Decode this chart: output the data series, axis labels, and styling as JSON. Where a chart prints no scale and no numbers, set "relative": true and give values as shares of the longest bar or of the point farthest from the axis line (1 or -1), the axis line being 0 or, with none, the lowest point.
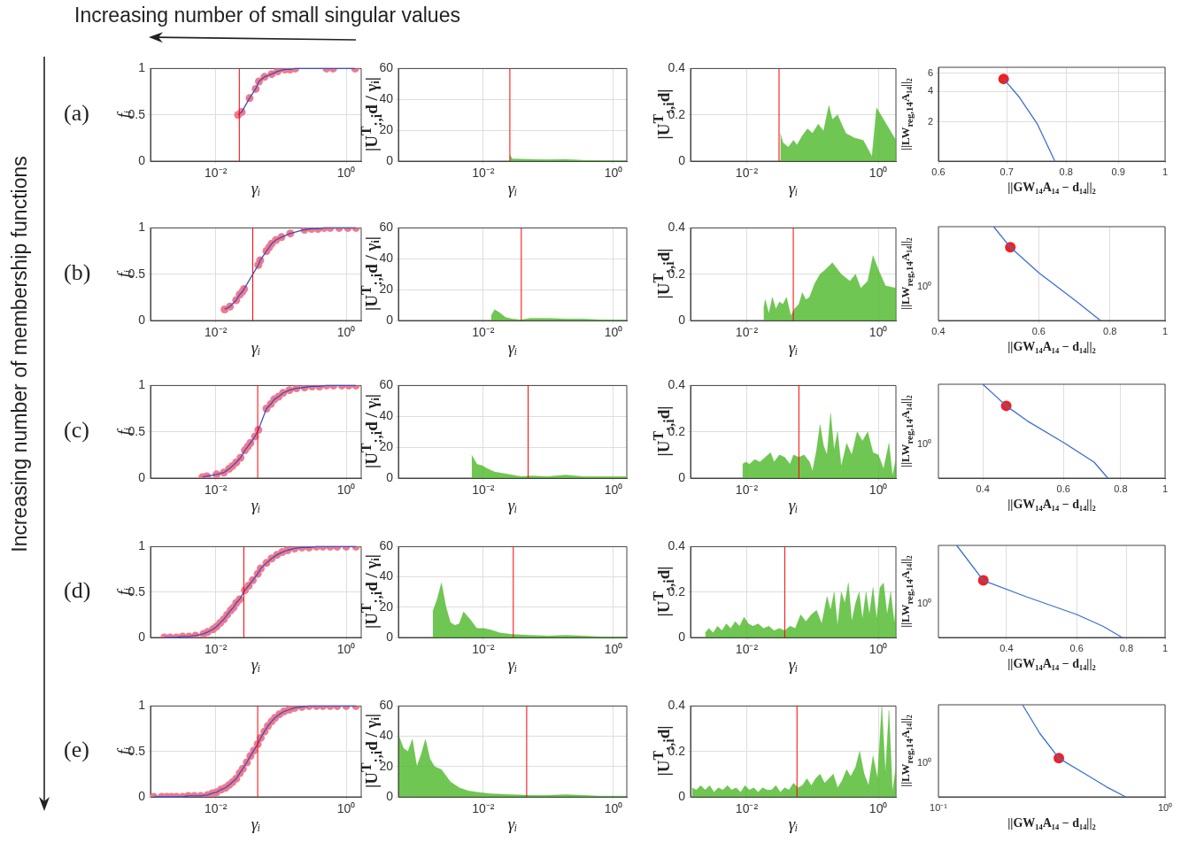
{
  "chart_data": [
    {
      "type": "line",
      "xlabel": "γᵢ",
      "ylabel": "fᵢ",
      "annotations": [
        "Increasing number of small singular values",
        "Increasing number of membership functions",
        "(a)"
      ],
      "log": "x",
      "grid": true,
      "xlim": [
        0.001,
        1.7
      ],
      "ylim": [
        0,
        1
      ],
      "xticks": [
        {
          "value": 0.01,
          "label": "10⁻²"
        },
        {
          "value": 1,
          "label": "10⁰"
        }
      ],
      "yticks": [
        0,
        0.5,
        1
      ],
      "ref_lines": [
        {
          "axis": "x",
          "value": 0.023,
          "color": "#ff0000"
        }
      ],
      "x": [
        0.022,
        0.025,
        0.033,
        0.041,
        0.046,
        0.056,
        0.072,
        0.089,
        0.115,
        0.138,
        0.166,
        0.5,
        0.63,
        1.37
      ],
      "series": [
        {
          "color": "#3b4fc4",
          "values": [
            0.5,
            0.53,
            0.68,
            0.78,
            0.86,
            0.91,
            0.94,
            0.97,
            0.99,
            0.99,
            1,
            1,
            1,
            1
          ]
        },
        {
          "type": "scatter",
          "marker": "circle",
          "color": "#f2798b",
          "values": [
            0.5,
            0.53,
            0.68,
            0.78,
            0.86,
            0.91,
            0.94,
            0.97,
            0.99,
            0.99,
            1,
            1,
            1,
            1
          ]
        }
      ]
    },
    {
      "type": "area",
      "xlabel": "γᵢ",
      "ylabel": "|U$^{T}$$_{:,i}$d / γᵢ|",
      "log": "x",
      "grid": true,
      "xlim": [
        0.0005,
        1.6
      ],
      "ylim": [
        0,
        60
      ],
      "xticks": [
        {
          "value": 0.01,
          "label": "10⁻²"
        },
        {
          "value": 1,
          "label": "10⁰"
        }
      ],
      "yticks": [
        0,
        20,
        40,
        60
      ],
      "ref_lines": [
        {
          "axis": "x",
          "value": 0.0257,
          "color": "#ff0000"
        }
      ],
      "x": [
        0.0257,
        0.0281,
        0.053,
        0.098,
        0.184,
        0.345,
        0.645,
        1.55
      ],
      "series": [
        {
          "color": "#4cb828",
          "values": [
            4,
            1.5,
            1.2,
            1,
            1.2,
            0.6,
            0.4,
            0.3
          ]
        }
      ]
    },
    {
      "type": "area",
      "xlabel": "γᵢ",
      "ylabel": "|U$^{T}$$_{:,i}$d|",
      "log": "x",
      "grid": true,
      "xlim": [
        0.0014,
        1.85
      ],
      "ylim": [
        0,
        0.4
      ],
      "xticks": [
        {
          "value": 0.01,
          "label": "10⁻²"
        },
        {
          "value": 1,
          "label": "10⁰"
        }
      ],
      "yticks": [
        0,
        0.2,
        0.4
      ],
      "ref_lines": [
        {
          "axis": "x",
          "value": 0.031,
          "color": "#ff0000"
        }
      ],
      "x": [
        0.0324,
        0.0355,
        0.0427,
        0.0514,
        0.058,
        0.07,
        0.084,
        0.1,
        0.122,
        0.147,
        0.177,
        0.2,
        0.24,
        0.32,
        0.43,
        0.59,
        0.8,
        0.94,
        1.85
      ],
      "series": [
        {
          "color": "#4cb828",
          "values": [
            0.12,
            0.08,
            0.06,
            0.09,
            0.07,
            0.11,
            0.14,
            0.12,
            0.16,
            0.13,
            0.24,
            0.18,
            0.2,
            0.12,
            0.1,
            0.09,
            0.02,
            0.23,
            0.09
          ]
        }
      ]
    },
    {
      "type": "line",
      "xlabel": "||GW₁₄A₁₄ − d₁₄||₂",
      "ylabel": "||LW$_{reg,14}$A₁₄||₂",
      "log": "xy",
      "grid": true,
      "xlim": [
        0.6,
        1
      ],
      "ylim": [
        0.82,
        6.9
      ],
      "xticks": [
        0.6,
        0.7,
        0.8,
        0.9,
        1
      ],
      "yticks": [
        2,
        4,
        6
      ],
      "series": [
        {
          "color": "#3b6fd4",
          "x": [
            0.695,
            0.72,
            0.75,
            0.78
          ],
          "values": [
            5.3,
            3.5,
            1.9,
            0.82
          ]
        },
        {
          "type": "scatter",
          "color": "#ee2222",
          "x": [
            0.695
          ],
          "values": [
            5.3
          ]
        }
      ]
    },
    {
      "type": "line",
      "xlabel": "γᵢ",
      "ylabel": "fᵢ",
      "annotations": [
        "(b)"
      ],
      "log": "x",
      "grid": true,
      "xlim": [
        0.001,
        1.7
      ],
      "ylim": [
        0,
        1
      ],
      "xticks": [
        {
          "value": 0.01,
          "label": "10⁻²"
        },
        {
          "value": 1,
          "label": "10⁰"
        }
      ],
      "yticks": [
        0,
        0.5,
        1
      ],
      "ref_lines": [
        {
          "axis": "x",
          "value": 0.037,
          "color": "#ff0000"
        }
      ],
      "x": [
        0.0137,
        0.0165,
        0.0206,
        0.0233,
        0.0256,
        0.0272,
        0.045,
        0.048,
        0.06,
        0.066,
        0.072,
        0.084,
        0.102,
        0.139,
        0.23,
        0.295,
        0.37,
        0.46,
        0.57,
        0.78,
        1.06,
        1.41
      ],
      "series": [
        {
          "color": "#3b4fc4",
          "values": [
            0.12,
            0.15,
            0.22,
            0.28,
            0.31,
            0.34,
            0.6,
            0.65,
            0.75,
            0.79,
            0.83,
            0.87,
            0.9,
            0.94,
            0.98,
            0.99,
            0.99,
            1,
            1,
            1,
            1,
            1
          ]
        },
        {
          "type": "scatter",
          "marker": "circle",
          "color": "#f2798b",
          "values": [
            0.12,
            0.15,
            0.22,
            0.28,
            0.31,
            0.34,
            0.6,
            0.65,
            0.75,
            0.79,
            0.83,
            0.87,
            0.9,
            0.94,
            0.98,
            0.99,
            0.99,
            1,
            1,
            1,
            1,
            1
          ]
        }
      ]
    },
    {
      "type": "area",
      "xlabel": "γᵢ",
      "ylabel": "|U$^{T}$$_{:,i}$d / γᵢ|",
      "log": "x",
      "grid": true,
      "xlim": [
        0.0005,
        1.6
      ],
      "ylim": [
        0,
        60
      ],
      "xticks": [
        {
          "value": 0.01,
          "label": "10⁻²"
        },
        {
          "value": 1,
          "label": "10⁰"
        }
      ],
      "yticks": [
        0,
        20,
        40,
        60
      ],
      "ref_lines": [
        {
          "axis": "x",
          "value": 0.0385,
          "color": "#ff0000"
        }
      ],
      "x": [
        0.0132,
        0.015,
        0.018,
        0.022,
        0.028,
        0.0385,
        0.053,
        0.098,
        0.184,
        0.345,
        0.645,
        1.55
      ],
      "series": [
        {
          "color": "#4cb828",
          "values": [
            3,
            7,
            5,
            2,
            1,
            0.5,
            1.5,
            1.5,
            1,
            1,
            0.5,
            0.3
          ]
        }
      ]
    },
    {
      "type": "area",
      "xlabel": "γᵢ",
      "ylabel": "|U$^{T}$$_{:,i}$d|",
      "log": "x",
      "grid": true,
      "xlim": [
        0.0014,
        1.85
      ],
      "ylim": [
        0,
        0.4
      ],
      "xticks": [
        {
          "value": 0.01,
          "label": "10⁻²"
        },
        {
          "value": 1,
          "label": "10⁰"
        }
      ],
      "yticks": [
        0,
        0.2,
        0.4
      ],
      "ref_lines": [
        {
          "axis": "x",
          "value": 0.051,
          "color": "#ff0000"
        }
      ],
      "x": [
        0.018,
        0.0191,
        0.0217,
        0.0245,
        0.0277,
        0.0314,
        0.0355,
        0.0402,
        0.0469,
        0.053,
        0.062,
        0.07,
        0.079,
        0.09,
        0.108,
        0.13,
        0.157,
        0.2,
        0.273,
        0.37,
        0.45,
        0.54,
        0.69,
        0.83,
        1.0,
        1.28,
        1.85
      ],
      "series": [
        {
          "color": "#4cb828",
          "values": [
            0.05,
            0.09,
            0.03,
            0.1,
            0.05,
            0.08,
            0.07,
            0.1,
            0.02,
            0.05,
            0.07,
            0.12,
            0.09,
            0.1,
            0.16,
            0.2,
            0.22,
            0.25,
            0.2,
            0.17,
            0.2,
            0.14,
            0.17,
            0.28,
            0.22,
            0.15,
            0.14
          ]
        }
      ]
    },
    {
      "type": "line",
      "xlabel": "||GW₁₄A₁₄ − d₁₄||₂",
      "ylabel": "||LW$_{reg,14}$A₁₄||₂",
      "log": "x",
      "grid": "x",
      "relative": true,
      "xlim": [
        0.4,
        1
      ],
      "xticks": [
        0.4,
        0.6,
        0.8,
        1
      ],
      "annotations": [
        "10⁰"
      ],
      "series": [
        {
          "color": "#3b6fd4",
          "x": [
            0.5,
            0.535,
            0.6,
            0.65,
            0.7,
            0.77
          ],
          "values": [
            1,
            0.78,
            0.51,
            0.35,
            0.2,
            0
          ]
        },
        {
          "type": "scatter",
          "color": "#ee2222",
          "x": [
            0.535
          ],
          "values": [
            0.78
          ]
        }
      ]
    },
    {
      "type": "line",
      "xlabel": "γᵢ",
      "ylabel": "fᵢ",
      "annotations": [
        "(c)"
      ],
      "log": "x",
      "grid": true,
      "xlim": [
        0.001,
        1.7
      ],
      "ylim": [
        0,
        1
      ],
      "xticks": [
        {
          "value": 0.01,
          "label": "10⁻²"
        },
        {
          "value": 1,
          "label": "10⁰"
        }
      ],
      "yticks": [
        0,
        0.5,
        1
      ],
      "ref_lines": [
        {
          "axis": "x",
          "value": 0.044,
          "color": "#ff0000"
        }
      ],
      "x": [
        0.00625,
        0.0073,
        0.0103,
        0.0133,
        0.016,
        0.018,
        0.0206,
        0.024,
        0.028,
        0.031,
        0.034,
        0.04,
        0.045,
        0.06,
        0.07,
        0.079,
        0.092,
        0.108,
        0.135,
        0.173,
        0.23,
        0.3,
        0.39,
        0.5,
        0.64,
        0.86,
        1.1,
        1.41
      ],
      "series": [
        {
          "color": "#3b4fc4",
          "values": [
            0.01,
            0.02,
            0.04,
            0.06,
            0.1,
            0.13,
            0.17,
            0.22,
            0.3,
            0.34,
            0.38,
            0.45,
            0.52,
            0.75,
            0.8,
            0.85,
            0.88,
            0.92,
            0.95,
            0.97,
            0.98,
            0.99,
            0.99,
            1,
            1,
            1,
            1,
            1
          ]
        },
        {
          "type": "scatter",
          "marker": "circle",
          "color": "#f2798b",
          "values": [
            0.01,
            0.02,
            0.04,
            0.06,
            0.1,
            0.13,
            0.17,
            0.22,
            0.3,
            0.34,
            0.38,
            0.45,
            0.52,
            0.75,
            0.8,
            0.85,
            0.88,
            0.92,
            0.95,
            0.97,
            0.98,
            0.99,
            0.99,
            1,
            1,
            1,
            1,
            1
          ]
        }
      ]
    },
    {
      "type": "area",
      "xlabel": "γᵢ",
      "ylabel": "|U$^{T}$$_{:,i}$d / γᵢ|",
      "log": "x",
      "grid": true,
      "xlim": [
        0.0005,
        1.6
      ],
      "ylim": [
        0,
        60
      ],
      "xticks": [
        {
          "value": 0.01,
          "label": "10⁻²"
        },
        {
          "value": 1,
          "label": "10⁰"
        }
      ],
      "yticks": [
        0,
        20,
        40,
        60
      ],
      "ref_lines": [
        {
          "axis": "x",
          "value": 0.049,
          "color": "#ff0000"
        }
      ],
      "x": [
        0.00665,
        0.008,
        0.0097,
        0.0117,
        0.015,
        0.0206,
        0.028,
        0.0385,
        0.053,
        0.098,
        0.184,
        0.345,
        0.645,
        1.55
      ],
      "series": [
        {
          "color": "#4cb828",
          "values": [
            15,
            9,
            8,
            6,
            4,
            3,
            2,
            1,
            1.5,
            1,
            2,
            1,
            1,
            1
          ]
        }
      ]
    },
    {
      "type": "area",
      "xlabel": "γᵢ",
      "ylabel": "|U$^{T}$$_{:,i}$d|",
      "log": "x",
      "grid": true,
      "xlim": [
        0.0014,
        1.85
      ],
      "ylim": [
        0,
        0.4
      ],
      "xticks": [
        {
          "value": 0.01,
          "label": "10⁻²"
        },
        {
          "value": 1,
          "label": "10⁰"
        }
      ],
      "yticks": [
        0,
        0.2,
        0.4
      ],
      "ref_lines": [
        {
          "axis": "x",
          "value": 0.062,
          "color": "#ff0000"
        }
      ],
      "x": [
        0.0086,
        0.0097,
        0.011,
        0.0132,
        0.0159,
        0.0191,
        0.023,
        0.026,
        0.0314,
        0.0378,
        0.0455,
        0.0514,
        0.062,
        0.0745,
        0.09,
        0.1,
        0.115,
        0.13,
        0.147,
        0.166,
        0.188,
        0.213,
        0.24,
        0.273,
        0.33,
        0.395,
        0.476,
        0.573,
        0.69,
        0.83,
        1.0,
        1.2,
        1.45,
        1.64,
        1.85
      ],
      "series": [
        {
          "color": "#4cb828",
          "values": [
            0.06,
            0.07,
            0.06,
            0.08,
            0.07,
            0.09,
            0.11,
            0.07,
            0.1,
            0.09,
            0.06,
            0.1,
            0.09,
            0.1,
            0.07,
            0.03,
            0.12,
            0.23,
            0.14,
            0.1,
            0.28,
            0.12,
            0.2,
            0.05,
            0.15,
            0.1,
            0.2,
            0.16,
            0.2,
            0.11,
            0.1,
            0.04,
            0.15,
            0.01,
            0.08
          ]
        }
      ]
    },
    {
      "type": "line",
      "xlabel": "||GW₁₄A₁₄ − d₁₄||₂",
      "ylabel": "||LW$_{reg,14}$A₁₄||₂",
      "log": "x",
      "grid": "x",
      "relative": true,
      "xlim": [
        0.32,
        1
      ],
      "xticks": [
        0.4,
        0.6,
        0.8,
        1
      ],
      "annotations": [
        "10⁰"
      ],
      "series": [
        {
          "color": "#3b6fd4",
          "x": [
            0.4,
            0.45,
            0.5,
            0.6,
            0.7,
            0.75
          ],
          "values": [
            1,
            0.77,
            0.61,
            0.38,
            0.17,
            0
          ]
        },
        {
          "type": "scatter",
          "color": "#ee2222",
          "x": [
            0.45
          ],
          "values": [
            0.77
          ]
        }
      ]
    },
    {
      "type": "line",
      "xlabel": "γᵢ",
      "ylabel": "fᵢ",
      "annotations": [
        "(d)"
      ],
      "log": "x",
      "grid": true,
      "xlim": [
        0.001,
        1.7
      ],
      "ylim": [
        0,
        1
      ],
      "xticks": [
        {
          "value": 0.01,
          "label": "10⁻²"
        },
        {
          "value": 1,
          "label": "10⁰"
        }
      ],
      "yticks": [
        0,
        0.5,
        1
      ],
      "ref_lines": [
        {
          "axis": "x",
          "value": 0.027,
          "color": "#ff0000"
        }
      ],
      "x": [
        0.00163,
        0.002,
        0.0025,
        0.0031,
        0.0039,
        0.0049,
        0.0065,
        0.0075,
        0.0091,
        0.0103,
        0.0117,
        0.0133,
        0.015,
        0.017,
        0.0187,
        0.0206,
        0.0233,
        0.028,
        0.032,
        0.037,
        0.044,
        0.049,
        0.06,
        0.072,
        0.087,
        0.105,
        0.126,
        0.162,
        0.21,
        0.27,
        0.35,
        0.44,
        0.57,
        0.73,
        1.0,
        1.41
      ],
      "series": [
        {
          "color": "#3b4fc4",
          "values": [
            0,
            0,
            0,
            0.01,
            0.01,
            0.02,
            0.04,
            0.06,
            0.09,
            0.12,
            0.16,
            0.2,
            0.25,
            0.3,
            0.33,
            0.38,
            0.42,
            0.52,
            0.57,
            0.63,
            0.7,
            0.76,
            0.82,
            0.87,
            0.91,
            0.94,
            0.96,
            0.98,
            0.99,
            0.99,
            1,
            1,
            1,
            1,
            1,
            1
          ]
        },
        {
          "type": "scatter",
          "marker": "circle",
          "color": "#f2798b",
          "values": [
            0,
            0,
            0,
            0.01,
            0.01,
            0.02,
            0.04,
            0.06,
            0.09,
            0.12,
            0.16,
            0.2,
            0.25,
            0.3,
            0.33,
            0.38,
            0.42,
            0.52,
            0.57,
            0.63,
            0.7,
            0.76,
            0.82,
            0.87,
            0.91,
            0.94,
            0.96,
            0.98,
            0.99,
            0.99,
            1,
            1,
            1,
            1,
            1,
            1
          ]
        }
      ]
    },
    {
      "type": "area",
      "xlabel": "γᵢ",
      "ylabel": "|U$^{T}$$_{:,i}$d / γᵢ|",
      "log": "x",
      "grid": true,
      "xlim": [
        0.0005,
        1.6
      ],
      "ylim": [
        0,
        60
      ],
      "xticks": [
        {
          "value": 0.01,
          "label": "10⁻²"
        },
        {
          "value": 1,
          "label": "10⁰"
        }
      ],
      "yticks": [
        0,
        20,
        40,
        60
      ],
      "ref_lines": [
        {
          "axis": "x",
          "value": 0.029,
          "color": "#ff0000"
        }
      ],
      "x": [
        0.00168,
        0.00196,
        0.00229,
        0.00269,
        0.00314,
        0.00367,
        0.0043,
        0.005,
        0.0063,
        0.008,
        0.0103,
        0.0132,
        0.018,
        0.028,
        0.053,
        0.098,
        0.184,
        0.345,
        0.645,
        1.55
      ],
      "series": [
        {
          "color": "#4cb828",
          "values": [
            17,
            25,
            36,
            20,
            10,
            8,
            9,
            17,
            12,
            6,
            6,
            5,
            3,
            2,
            1.5,
            1,
            1.5,
            1,
            0.5,
            0.5
          ]
        }
      ]
    },
    {
      "type": "area",
      "xlabel": "γᵢ",
      "ylabel": "|U$^{T}$$_{:,i}$d|",
      "log": "x",
      "grid": true,
      "xlim": [
        0.0014,
        1.85
      ],
      "ylim": [
        0,
        0.4
      ],
      "xticks": [
        {
          "value": 0.01,
          "label": "10⁻²"
        },
        {
          "value": 1,
          "label": "10⁰"
        }
      ],
      "yticks": [
        0,
        0.2,
        0.4
      ],
      "ref_lines": [
        {
          "axis": "x",
          "value": 0.0378,
          "color": "#ff0000"
        }
      ],
      "x": [
        0.00234,
        0.00265,
        0.00309,
        0.0036,
        0.0042,
        0.0049,
        0.0057,
        0.0067,
        0.0078,
        0.0091,
        0.0106,
        0.0124,
        0.0149,
        0.018,
        0.0217,
        0.026,
        0.0314,
        0.0378,
        0.0455,
        0.0547,
        0.066,
        0.079,
        0.096,
        0.115,
        0.138,
        0.166,
        0.188,
        0.213,
        0.24,
        0.273,
        0.31,
        0.35,
        0.395,
        0.45,
        0.51,
        0.573,
        0.65,
        0.73,
        0.83,
        0.94,
        1.06,
        1.2,
        1.36,
        1.54,
        1.75,
        1.85
      ],
      "series": [
        {
          "color": "#4cb828",
          "values": [
            0.02,
            0.04,
            0.02,
            0.05,
            0.03,
            0.06,
            0.04,
            0.07,
            0.05,
            0.09,
            0.06,
            0.05,
            0.06,
            0.04,
            0.05,
            0.03,
            0.04,
            0.03,
            0.05,
            0.04,
            0.1,
            0.07,
            0.1,
            0.12,
            0.06,
            0.18,
            0.12,
            0.2,
            0.05,
            0.2,
            0.15,
            0.24,
            0.07,
            0.15,
            0.2,
            0.08,
            0.2,
            0.1,
            0.22,
            0.08,
            0.22,
            0.24,
            0.1,
            0.2,
            0.06,
            0.15
          ]
        }
      ]
    },
    {
      "type": "line",
      "xlabel": "||GW₁₄A₁₄ − d₁₄||₂",
      "ylabel": "||LW$_{reg,14}$A₁₄||₂",
      "log": "x",
      "grid": "x",
      "relative": true,
      "xlim": [
        0.27,
        1
      ],
      "xticks": [
        0.4,
        0.6,
        0.8,
        1
      ],
      "annotations": [
        "10⁰"
      ],
      "series": [
        {
          "color": "#3b6fd4",
          "x": [
            0.3,
            0.35,
            0.45,
            0.6,
            0.7,
            0.78
          ],
          "values": [
            1,
            0.62,
            0.44,
            0.25,
            0.12,
            0
          ]
        },
        {
          "type": "scatter",
          "color": "#ee2222",
          "x": [
            0.35
          ],
          "values": [
            0.62
          ]
        }
      ]
    },
    {
      "type": "line",
      "xlabel": "γᵢ",
      "ylabel": "fᵢ",
      "annotations": [
        "(e)"
      ],
      "log": "x",
      "grid": true,
      "xlim": [
        0.001,
        1.7
      ],
      "ylim": [
        0,
        1
      ],
      "xticks": [
        {
          "value": 0.01,
          "label": "10⁻²"
        },
        {
          "value": 1,
          "label": "10⁰"
        }
      ],
      "yticks": [
        0,
        0.5,
        1
      ],
      "ref_lines": [
        {
          "axis": "x",
          "value": 0.044,
          "color": "#ff0000"
        }
      ],
      "x": [
        0.00112,
        0.00148,
        0.00178,
        0.0021,
        0.0025,
        0.0031,
        0.0038,
        0.0047,
        0.0059,
        0.0075,
        0.0089,
        0.0103,
        0.0121,
        0.0141,
        0.016,
        0.018,
        0.0206,
        0.0233,
        0.026,
        0.03,
        0.034,
        0.0385,
        0.044,
        0.049,
        0.056,
        0.063,
        0.072,
        0.081,
        0.095,
        0.112,
        0.135,
        0.162,
        0.21,
        0.27,
        0.35,
        0.44,
        0.57,
        0.73,
        1.0,
        1.41
      ],
      "series": [
        {
          "color": "#3b4fc4",
          "values": [
            0,
            0,
            0,
            0,
            0,
            0,
            0.01,
            0.01,
            0.01,
            0.02,
            0.04,
            0.05,
            0.08,
            0.1,
            0.13,
            0.16,
            0.2,
            0.26,
            0.31,
            0.38,
            0.45,
            0.51,
            0.58,
            0.65,
            0.72,
            0.78,
            0.83,
            0.87,
            0.91,
            0.94,
            0.96,
            0.98,
            0.99,
            1,
            1,
            1,
            1,
            1,
            1,
            1
          ]
        },
        {
          "type": "scatter",
          "marker": "circle",
          "color": "#f2798b",
          "values": [
            0,
            0,
            0,
            0,
            0,
            0,
            0.01,
            0.01,
            0.01,
            0.02,
            0.04,
            0.05,
            0.08,
            0.1,
            0.13,
            0.16,
            0.2,
            0.26,
            0.31,
            0.38,
            0.45,
            0.51,
            0.58,
            0.65,
            0.72,
            0.78,
            0.83,
            0.87,
            0.91,
            0.94,
            0.96,
            0.98,
            0.99,
            1,
            1,
            1,
            1,
            1,
            1,
            1
          ]
        }
      ]
    },
    {
      "type": "area",
      "xlabel": "γᵢ",
      "ylabel": "|U$^{T}$$_{:,i}$d / γᵢ|",
      "log": "x",
      "grid": true,
      "xlim": [
        0.0005,
        1.6
      ],
      "ylim": [
        0,
        60
      ],
      "xticks": [
        {
          "value": 0.01,
          "label": "10⁻²"
        },
        {
          "value": 1,
          "label": "10⁰"
        }
      ],
      "yticks": [
        0,
        20,
        40,
        60
      ],
      "ref_lines": [
        {
          "axis": "x",
          "value": 0.0465,
          "color": "#ff0000"
        }
      ],
      "x": [
        0.00051,
        0.0006,
        0.0007,
        0.00082,
        0.00096,
        0.00112,
        0.0013,
        0.00153,
        0.00179,
        0.00229,
        0.00314,
        0.0043,
        0.0059,
        0.008,
        0.0132,
        0.028,
        0.053,
        0.098,
        0.184,
        0.345,
        0.645,
        1.55
      ],
      "series": [
        {
          "color": "#4cb828",
          "values": [
            40,
            32,
            30,
            38,
            20,
            28,
            38,
            25,
            20,
            18,
            10,
            6,
            4,
            3,
            2,
            1.5,
            1,
            1,
            1.5,
            1,
            0.5,
            0.5
          ]
        }
      ]
    },
    {
      "type": "area",
      "xlabel": "γᵢ",
      "ylabel": "|U$^{T}$$_{:,i}$d|",
      "log": "x",
      "grid": true,
      "xlim": [
        0.0014,
        1.85
      ],
      "ylim": [
        0,
        0.4
      ],
      "xticks": [
        {
          "value": 0.01,
          "label": "10⁻²"
        },
        {
          "value": 1,
          "label": "10⁰"
        }
      ],
      "yticks": [
        0,
        0.2,
        0.4
      ],
      "ref_lines": [
        {
          "axis": "x",
          "value": 0.058,
          "color": "#ff0000"
        }
      ],
      "x": [
        0.00147,
        0.00172,
        0.002,
        0.00234,
        0.00273,
        0.00318,
        0.0037,
        0.00434,
        0.0051,
        0.0059,
        0.0069,
        0.0081,
        0.0094,
        0.011,
        0.0128,
        0.0149,
        0.0174,
        0.0204,
        0.0238,
        0.0277,
        0.0324,
        0.0378,
        0.044,
        0.0514,
        0.06,
        0.07,
        0.082,
        0.096,
        0.111,
        0.13,
        0.152,
        0.177,
        0.207,
        0.24,
        0.28,
        0.33,
        0.38,
        0.45,
        0.52,
        0.61,
        0.71,
        0.83,
        0.97,
        1.13,
        1.28,
        1.45,
        1.64,
        1.85
      ],
      "series": [
        {
          "color": "#4cb828",
          "values": [
            0.04,
            0.03,
            0.05,
            0.03,
            0.05,
            0.02,
            0.04,
            0.03,
            0.05,
            0.03,
            0.04,
            0.02,
            0.05,
            0.03,
            0.04,
            0.02,
            0.04,
            0.03,
            0.03,
            0.05,
            0.02,
            0.04,
            0.03,
            0.06,
            0.04,
            0.05,
            0.08,
            0.05,
            0.08,
            0.1,
            0.06,
            0.08,
            0.1,
            0.04,
            0.07,
            0.12,
            0.09,
            0.13,
            0.2,
            0.1,
            0.05,
            0.18,
            0.08,
            0.4,
            0.1,
            0.38,
            0.02,
            0.13
          ]
        }
      ]
    },
    {
      "type": "line",
      "xlabel": "||GW₁₄A₁₄ − d₁₄||₂",
      "ylabel": "||LW$_{reg,14}$A₁₄||₂",
      "log": "x",
      "grid": "x",
      "relative": true,
      "xlim": [
        0.1,
        1
      ],
      "xticks": [
        {
          "value": 0.1,
          "label": "10⁻¹"
        },
        {
          "value": 1,
          "label": "10⁰"
        }
      ],
      "annotations": [
        "10⁰"
      ],
      "series": [
        {
          "color": "#3b6fd4",
          "x": [
            0.235,
            0.28,
            0.34,
            0.45,
            0.55,
            0.67
          ],
          "values": [
            1,
            0.69,
            0.42,
            0.24,
            0.11,
            0
          ]
        },
        {
          "type": "scatter",
          "color": "#ee2222",
          "x": [
            0.34
          ],
          "values": [
            0.42
          ]
        }
      ]
    }
  ]
}
